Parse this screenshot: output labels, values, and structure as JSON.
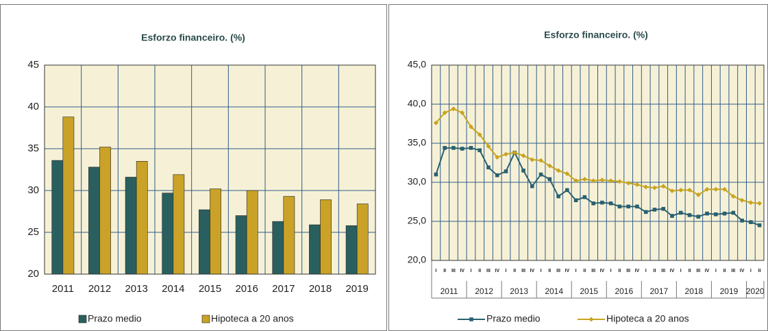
{
  "chart_data": [
    {
      "type": "bar",
      "title": "Esforzo  financeiro. (%)",
      "categories": [
        "2011",
        "2012",
        "2013",
        "2014",
        "2015",
        "2016",
        "2017",
        "2018",
        "2019"
      ],
      "series": [
        {
          "name": "Prazo medio",
          "color": "#2a5f5f",
          "values": [
            33.6,
            32.8,
            31.6,
            29.7,
            27.7,
            27.0,
            26.3,
            25.9,
            25.8
          ]
        },
        {
          "name": "Hipoteca a 20 anos",
          "color": "#c9a227",
          "values": [
            38.8,
            35.2,
            33.5,
            31.9,
            30.2,
            30.0,
            29.3,
            28.9,
            28.4
          ]
        }
      ],
      "ylim": [
        20,
        45
      ],
      "yticks": [
        20,
        25,
        30,
        35,
        40,
        45
      ],
      "grid": true
    },
    {
      "type": "line",
      "title": "Esforzo  financeiro. (%)",
      "x": [
        "I",
        "II",
        "III",
        "IV",
        "I",
        "II",
        "III",
        "IV",
        "I",
        "II",
        "III",
        "IV",
        "I",
        "II",
        "III",
        "IV",
        "I",
        "II",
        "III",
        "IV",
        "I",
        "II",
        "III",
        "IV",
        "I",
        "II",
        "III",
        "IV",
        "I",
        "II",
        "III",
        "IV",
        "I",
        "II",
        "III",
        "IV",
        "I",
        "II"
      ],
      "year_groups": [
        {
          "label": "2011",
          "count": 4
        },
        {
          "label": "2012",
          "count": 4
        },
        {
          "label": "2013",
          "count": 4
        },
        {
          "label": "2014",
          "count": 4
        },
        {
          "label": "2015",
          "count": 4
        },
        {
          "label": "2016",
          "count": 4
        },
        {
          "label": "2017",
          "count": 4
        },
        {
          "label": "2018",
          "count": 4
        },
        {
          "label": "2019",
          "count": 4
        },
        {
          "label": "2020",
          "count": 2
        }
      ],
      "series": [
        {
          "name": "Prazo medio",
          "color": "#2a6070",
          "marker": "square",
          "values": [
            31.0,
            34.4,
            34.4,
            34.3,
            34.4,
            34.1,
            31.9,
            30.9,
            31.4,
            33.8,
            31.5,
            29.5,
            31.0,
            30.4,
            28.2,
            29.0,
            27.7,
            28.1,
            27.3,
            27.4,
            27.3,
            26.9,
            26.9,
            26.9,
            26.2,
            26.5,
            26.6,
            25.7,
            26.1,
            25.8,
            25.6,
            26.0,
            25.9,
            26.0,
            26.1,
            25.1,
            24.9,
            24.5
          ]
        },
        {
          "name": "Hipoteca a 20 anos",
          "color": "#c8a420",
          "marker": "diamond",
          "values": [
            37.6,
            38.9,
            39.4,
            38.9,
            37.1,
            36.1,
            34.6,
            33.2,
            33.6,
            33.8,
            33.4,
            32.9,
            32.8,
            32.1,
            31.5,
            31.1,
            30.2,
            30.4,
            30.2,
            30.3,
            30.2,
            30.1,
            29.9,
            29.7,
            29.4,
            29.3,
            29.5,
            28.9,
            29.0,
            29.0,
            28.4,
            29.1,
            29.1,
            29.1,
            28.2,
            27.7,
            27.4,
            27.3
          ]
        }
      ],
      "ylim": [
        20,
        45
      ],
      "yticks": [
        {
          "value": 20,
          "label": "20,0"
        },
        {
          "value": 25,
          "label": "25,0"
        },
        {
          "value": 30,
          "label": "30,0"
        },
        {
          "value": 35,
          "label": "35,0"
        },
        {
          "value": 40,
          "label": "40,0"
        },
        {
          "value": 45,
          "label": "45,0"
        }
      ],
      "grid": true
    }
  ]
}
